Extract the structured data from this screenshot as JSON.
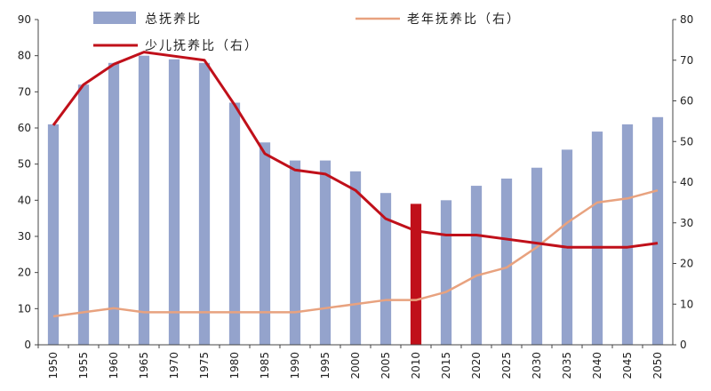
{
  "chart_data": {
    "type": "bar",
    "categories": [
      "1950",
      "1955",
      "1960",
      "1965",
      "1970",
      "1975",
      "1980",
      "1985",
      "1990",
      "1995",
      "2000",
      "2005",
      "2010",
      "2015",
      "2020",
      "2025",
      "2030",
      "2035",
      "2040",
      "2045",
      "2050"
    ],
    "highlight_category": "2010",
    "y_left": {
      "ylim": [
        0,
        90
      ],
      "ticks": [
        0,
        10,
        20,
        30,
        40,
        50,
        60,
        70,
        80,
        90
      ]
    },
    "y_right": {
      "ylim": [
        0,
        80
      ],
      "ticks": [
        0,
        10,
        20,
        30,
        40,
        50,
        60,
        70,
        80
      ]
    },
    "series": [
      {
        "name": "总抚养比",
        "type": "bar",
        "axis": "left",
        "color": "#94a3cc",
        "highlight_color": "#c0101a",
        "values": [
          61,
          72,
          78,
          80,
          79,
          78,
          67,
          56,
          51,
          51,
          48,
          42,
          39,
          40,
          44,
          46,
          49,
          54,
          59,
          61,
          63
        ]
      },
      {
        "name": "老年抚养比（右）",
        "type": "line",
        "axis": "right",
        "color": "#e8a27f",
        "values": [
          7,
          8,
          9,
          8,
          8,
          8,
          8,
          8,
          8,
          9,
          10,
          11,
          11,
          13,
          17,
          19,
          24,
          30,
          35,
          36,
          38
        ]
      },
      {
        "name": "少儿抚养比（右）",
        "type": "line",
        "axis": "right",
        "color": "#c0101a",
        "values": [
          54,
          64,
          69,
          72,
          71,
          70,
          59,
          47,
          43,
          42,
          38,
          31,
          28,
          27,
          27,
          26,
          25,
          24,
          24,
          24,
          25
        ]
      }
    ],
    "legend": [
      "总抚养比",
      "老年抚养比（右）",
      "少儿抚养比（右）"
    ],
    "legend_position": "top",
    "grid": false
  }
}
